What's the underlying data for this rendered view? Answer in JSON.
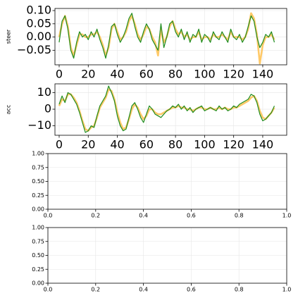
{
  "chart_data": [
    {
      "type": "line",
      "ylabel": "steer",
      "xlim": [
        -2.9,
        156.5
      ],
      "ylim": [
        -0.105,
        0.108
      ],
      "xticks": [
        0,
        20,
        40,
        60,
        80,
        100,
        120,
        140
      ],
      "yticks": [
        {
          "value": -0.05,
          "label": "−0.05"
        },
        {
          "value": 0,
          "label": "0.00"
        },
        0.05,
        {
          "value": 0.1,
          "label": "0.10"
        }
      ],
      "grid": true,
      "x": [
        0,
        2,
        4,
        6,
        8,
        10,
        12,
        14,
        16,
        18,
        20,
        22,
        24,
        26,
        28,
        30,
        32,
        34,
        36,
        38,
        40,
        42,
        44,
        46,
        48,
        50,
        52,
        54,
        56,
        58,
        60,
        62,
        64,
        66,
        68,
        70,
        72,
        74,
        76,
        78,
        80,
        82,
        84,
        86,
        88,
        90,
        92,
        94,
        96,
        98,
        100,
        102,
        104,
        106,
        108,
        110,
        112,
        114,
        116,
        118,
        120,
        122,
        124,
        126,
        128,
        130,
        132,
        134,
        136,
        138,
        140,
        142,
        144,
        146,
        148
      ],
      "series": [
        {
          "color": "#ffc04d",
          "values": [
            0.0,
            0.05,
            0.08,
            0.04,
            -0.04,
            -0.07,
            -0.03,
            0.01,
            0.01,
            0.0,
            0.0,
            0.01,
            0.01,
            0.02,
            0.0,
            -0.03,
            -0.07,
            -0.04,
            0.03,
            0.05,
            0.02,
            -0.01,
            0.0,
            0.02,
            0.06,
            0.08,
            0.05,
            0.01,
            -0.01,
            0.01,
            0.04,
            0.03,
            0.0,
            -0.02,
            -0.07,
            0.03,
            -0.02,
            0.0,
            0.04,
            0.06,
            0.03,
            0.01,
            0.02,
            0.0,
            0.01,
            -0.01,
            0.0,
            0.0,
            0.02,
            -0.01,
            0.0,
            0.0,
            -0.01,
            0.01,
            0.0,
            0.0,
            0.01,
            0.0,
            -0.01,
            0.02,
            0.0,
            0.0,
            0.0,
            -0.01,
            0.0,
            0.03,
            0.09,
            0.07,
            0.01,
            -0.1,
            -0.03,
            0.0,
            0.0,
            0.01,
            -0.01
          ]
        },
        {
          "color": "#1e8c1e",
          "values": [
            -0.02,
            0.06,
            0.08,
            0.03,
            -0.05,
            -0.08,
            -0.02,
            0.02,
            0.0,
            0.01,
            -0.01,
            0.02,
            0.0,
            0.03,
            -0.01,
            -0.04,
            -0.08,
            -0.03,
            0.04,
            0.05,
            0.01,
            -0.02,
            0.0,
            0.03,
            0.07,
            0.09,
            0.04,
            0.0,
            -0.02,
            0.02,
            0.05,
            0.03,
            -0.01,
            -0.03,
            -0.05,
            0.05,
            -0.04,
            0.0,
            0.05,
            0.06,
            0.02,
            0.0,
            0.03,
            -0.01,
            0.02,
            -0.02,
            0.01,
            0.0,
            0.03,
            -0.02,
            0.01,
            0.0,
            -0.02,
            0.02,
            0.0,
            -0.01,
            0.02,
            0.0,
            -0.02,
            0.03,
            0.0,
            -0.01,
            0.01,
            -0.02,
            0.0,
            0.04,
            0.08,
            0.06,
            0.0,
            -0.04,
            -0.02,
            0.01,
            0.0,
            0.02,
            -0.02
          ]
        }
      ]
    },
    {
      "type": "line",
      "ylabel": "acc",
      "xlim": [
        -2.9,
        156.5
      ],
      "ylim": [
        -15.7,
        15.3
      ],
      "xticks": [
        0,
        20,
        40,
        60,
        80,
        100,
        120,
        140
      ],
      "yticks": [
        {
          "value": -10,
          "label": "−10"
        },
        0,
        10
      ],
      "grid": true,
      "x": [
        0,
        2,
        4,
        6,
        8,
        10,
        12,
        14,
        16,
        18,
        20,
        22,
        24,
        26,
        28,
        30,
        32,
        34,
        36,
        38,
        40,
        42,
        44,
        46,
        48,
        50,
        52,
        54,
        56,
        58,
        60,
        62,
        64,
        66,
        68,
        70,
        72,
        74,
        76,
        78,
        80,
        82,
        84,
        86,
        88,
        90,
        92,
        94,
        96,
        98,
        100,
        102,
        104,
        106,
        108,
        110,
        112,
        114,
        116,
        118,
        120,
        122,
        124,
        126,
        128,
        130,
        132,
        134,
        136,
        138,
        140,
        142,
        144,
        146,
        148
      ],
      "series": [
        {
          "color": "#ffc04d",
          "values": [
            2,
            6,
            5,
            9,
            9,
            7,
            4,
            -1,
            -7,
            -12,
            -13,
            -11,
            -10,
            -5,
            1,
            4,
            7,
            12,
            11,
            6,
            -2,
            -8,
            -12,
            -11,
            -6,
            0,
            3,
            1,
            -3,
            -6,
            -4,
            0,
            0,
            -2,
            -3,
            -3,
            -2,
            -1,
            0,
            1,
            1,
            2,
            1,
            1,
            0,
            0,
            -1,
            0,
            1,
            1,
            0,
            0,
            1,
            0,
            0,
            1,
            0,
            1,
            0,
            0,
            1,
            1,
            2,
            3,
            4,
            5,
            7,
            8,
            5,
            -1,
            -5,
            -6,
            -4,
            -2,
            1
          ]
        },
        {
          "color": "#1e8c1e",
          "values": [
            3,
            8,
            4,
            10,
            9,
            6,
            3,
            -2,
            -8,
            -14,
            -13,
            -10,
            -11,
            -4,
            2,
            5,
            8,
            14,
            10,
            5,
            -4,
            -10,
            -13,
            -12,
            -5,
            2,
            4,
            0,
            -5,
            -8,
            -3,
            2,
            0,
            -3,
            -4,
            -5,
            -3,
            -1,
            0,
            2,
            1,
            3,
            0,
            2,
            -1,
            1,
            -2,
            0,
            1,
            2,
            -1,
            0,
            1,
            0,
            -1,
            2,
            0,
            1,
            -1,
            0,
            2,
            1,
            3,
            4,
            5,
            6,
            9,
            8,
            4,
            -3,
            -7,
            -6,
            -4,
            -2,
            2
          ]
        }
      ]
    },
    {
      "type": "line",
      "xlim": [
        0,
        1
      ],
      "ylim": [
        0,
        1
      ],
      "xticks": [
        {
          "value": 0,
          "label": "0.0"
        },
        0.2,
        0.4,
        0.6,
        0.8,
        {
          "value": 1,
          "label": "1.0"
        }
      ],
      "yticks": [
        {
          "value": 0,
          "label": "0.00"
        },
        0.25,
        {
          "value": 0.5,
          "label": "0.50"
        },
        0.75,
        {
          "value": 1,
          "label": "1.00"
        }
      ],
      "grid": true,
      "series": []
    },
    {
      "type": "line",
      "xlim": [
        0,
        1
      ],
      "ylim": [
        0,
        1
      ],
      "xticks": [
        {
          "value": 0,
          "label": "0.0"
        },
        0.2,
        0.4,
        0.6,
        0.8,
        {
          "value": 1,
          "label": "1.0"
        }
      ],
      "yticks": [
        {
          "value": 0,
          "label": "0.00"
        },
        0.25,
        {
          "value": 0.5,
          "label": "0.50"
        },
        0.75,
        {
          "value": 1,
          "label": "1.00"
        }
      ],
      "grid": true,
      "series": []
    }
  ]
}
